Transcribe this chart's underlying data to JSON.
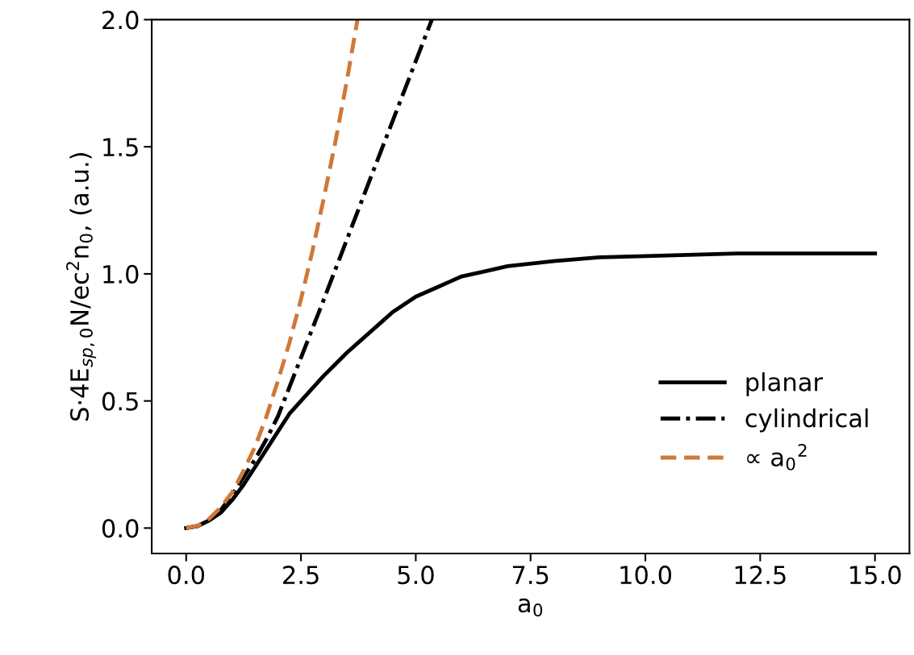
{
  "chart_data": {
    "type": "line",
    "xlabel": "a$_{0}$",
    "ylabel": "S·4E$_{sp,0}$N/ec$^{2}$n$_{0}$, (a.u.)",
    "series": [
      {
        "name": "planar",
        "color": "#000000",
        "line_style": "solid",
        "x": [
          0,
          0.25,
          0.5,
          0.75,
          1,
          1.25,
          1.5,
          1.75,
          2,
          2.25,
          2.5,
          2.75,
          3,
          3.25,
          3.5,
          3.75,
          4,
          4.25,
          4.5,
          4.75,
          5,
          5.25,
          5.5,
          5.75,
          6,
          6.5,
          7,
          8,
          9,
          10,
          12,
          15
        ],
        "values": [
          0,
          0.008,
          0.03,
          0.06,
          0.11,
          0.17,
          0.24,
          0.31,
          0.38,
          0.45,
          0.5,
          0.55,
          0.6,
          0.645,
          0.69,
          0.73,
          0.77,
          0.81,
          0.85,
          0.88,
          0.91,
          0.93,
          0.95,
          0.97,
          0.99,
          1.01,
          1.03,
          1.05,
          1.065,
          1.07,
          1.08,
          1.08
        ]
      },
      {
        "name": "cylindrical",
        "color": "#000000",
        "line_style": "dashdot",
        "x": [
          0,
          0.25,
          0.5,
          0.75,
          1,
          1.25,
          1.5,
          1.75,
          2,
          2.5,
          3,
          4,
          5.35
        ],
        "values": [
          0,
          0.008,
          0.03,
          0.07,
          0.13,
          0.2,
          0.27,
          0.35,
          0.44,
          0.67,
          0.9,
          1.37,
          2.0
        ]
      },
      {
        "name": "∝ a$_{0}$$^{2}$",
        "color": "#d07838",
        "line_style": "dashed",
        "x": [
          0,
          0.25,
          0.5,
          0.75,
          1,
          1.25,
          1.5,
          1.75,
          2,
          2.25,
          2.5,
          2.75,
          3,
          3.25,
          3.5,
          3.73
        ],
        "values": [
          0,
          0.009,
          0.036,
          0.081,
          0.14,
          0.225,
          0.32,
          0.44,
          0.58,
          0.73,
          0.9,
          1.09,
          1.3,
          1.52,
          1.76,
          2.0
        ]
      }
    ],
    "xlim": [
      -0.75,
      15.75
    ],
    "ylim": [
      -0.1,
      2.0
    ],
    "xticks": [
      {
        "value": 0,
        "label": "0.0"
      },
      2.5,
      {
        "value": 5,
        "label": "5.0"
      },
      7.5,
      {
        "value": 10,
        "label": "10.0"
      },
      12.5,
      {
        "value": 15,
        "label": "15.0"
      }
    ],
    "yticks": [
      {
        "value": 0,
        "label": "0.0"
      },
      0.5,
      {
        "value": 1,
        "label": "1.0"
      },
      1.5,
      {
        "value": 2,
        "label": "2.0"
      }
    ],
    "grid": false,
    "legend": "lower right",
    "marker": "none"
  }
}
